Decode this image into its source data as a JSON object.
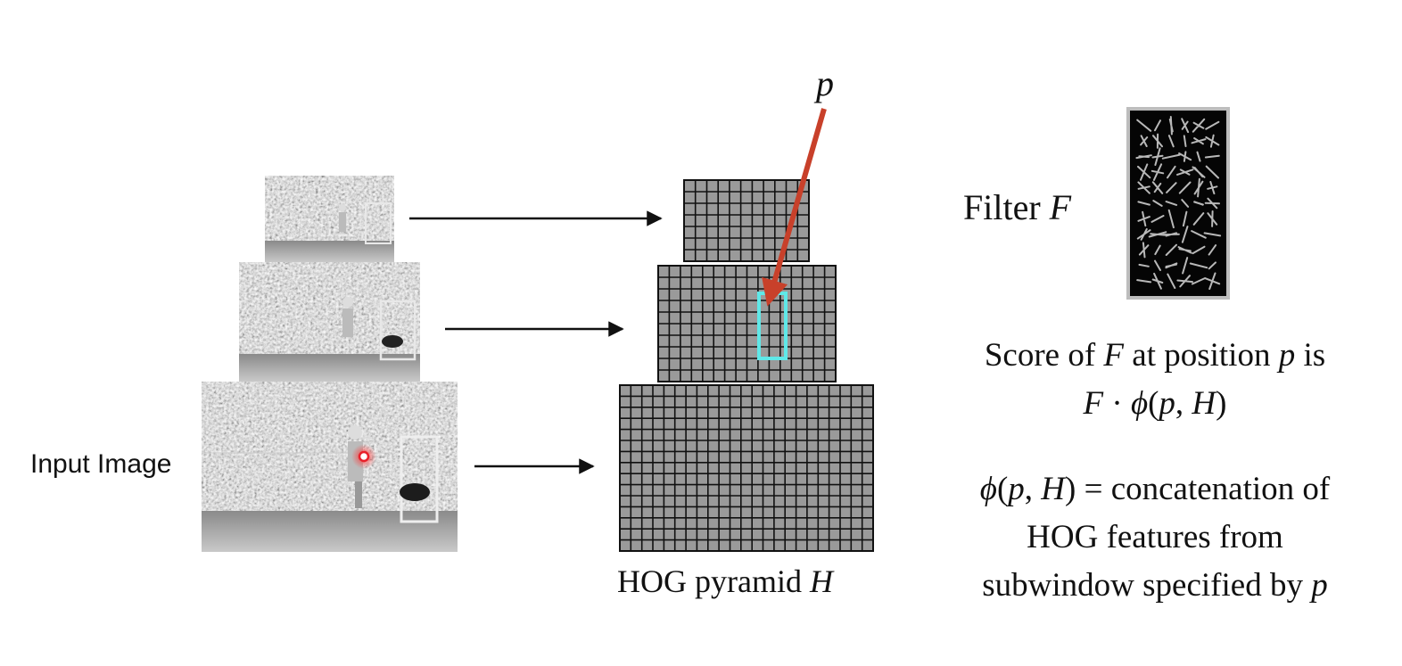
{
  "labels": {
    "input_image": "Input Image",
    "hog_pyramid": "HOG pyramid",
    "hog_var": "H",
    "position_var": "p",
    "filter": "Filter",
    "filter_var": "F"
  },
  "score": {
    "line1_a": "Score of",
    "var_F": "F",
    "line1_b": "at position",
    "var_p": "p",
    "line1_c": "is",
    "line2_F": "F",
    "line2_dot": "·",
    "line2_phi": "ϕ",
    "line2_open": "(",
    "line2_p": "p",
    "line2_comma": ", ",
    "line2_H": "H",
    "line2_close": ")"
  },
  "definition": {
    "phi": "ϕ",
    "open": "(",
    "p": "p",
    "comma": ", ",
    "H": "H",
    "rest1": ") = concatenation of",
    "line2": "HOG features from",
    "line3a": "subwindow specified by",
    "line3_p": "p"
  },
  "colors": {
    "arrow_red": "#c8402a",
    "subwindow_cyan": "#5fe8e8",
    "hog_fill": "#9a9a9a",
    "grid_line": "#111111",
    "keypoint_red": "#e8202a"
  },
  "pyramid_levels": [
    {
      "cols": 11,
      "rows": 7
    },
    {
      "cols": 16,
      "rows": 10
    },
    {
      "cols": 23,
      "rows": 15
    }
  ]
}
